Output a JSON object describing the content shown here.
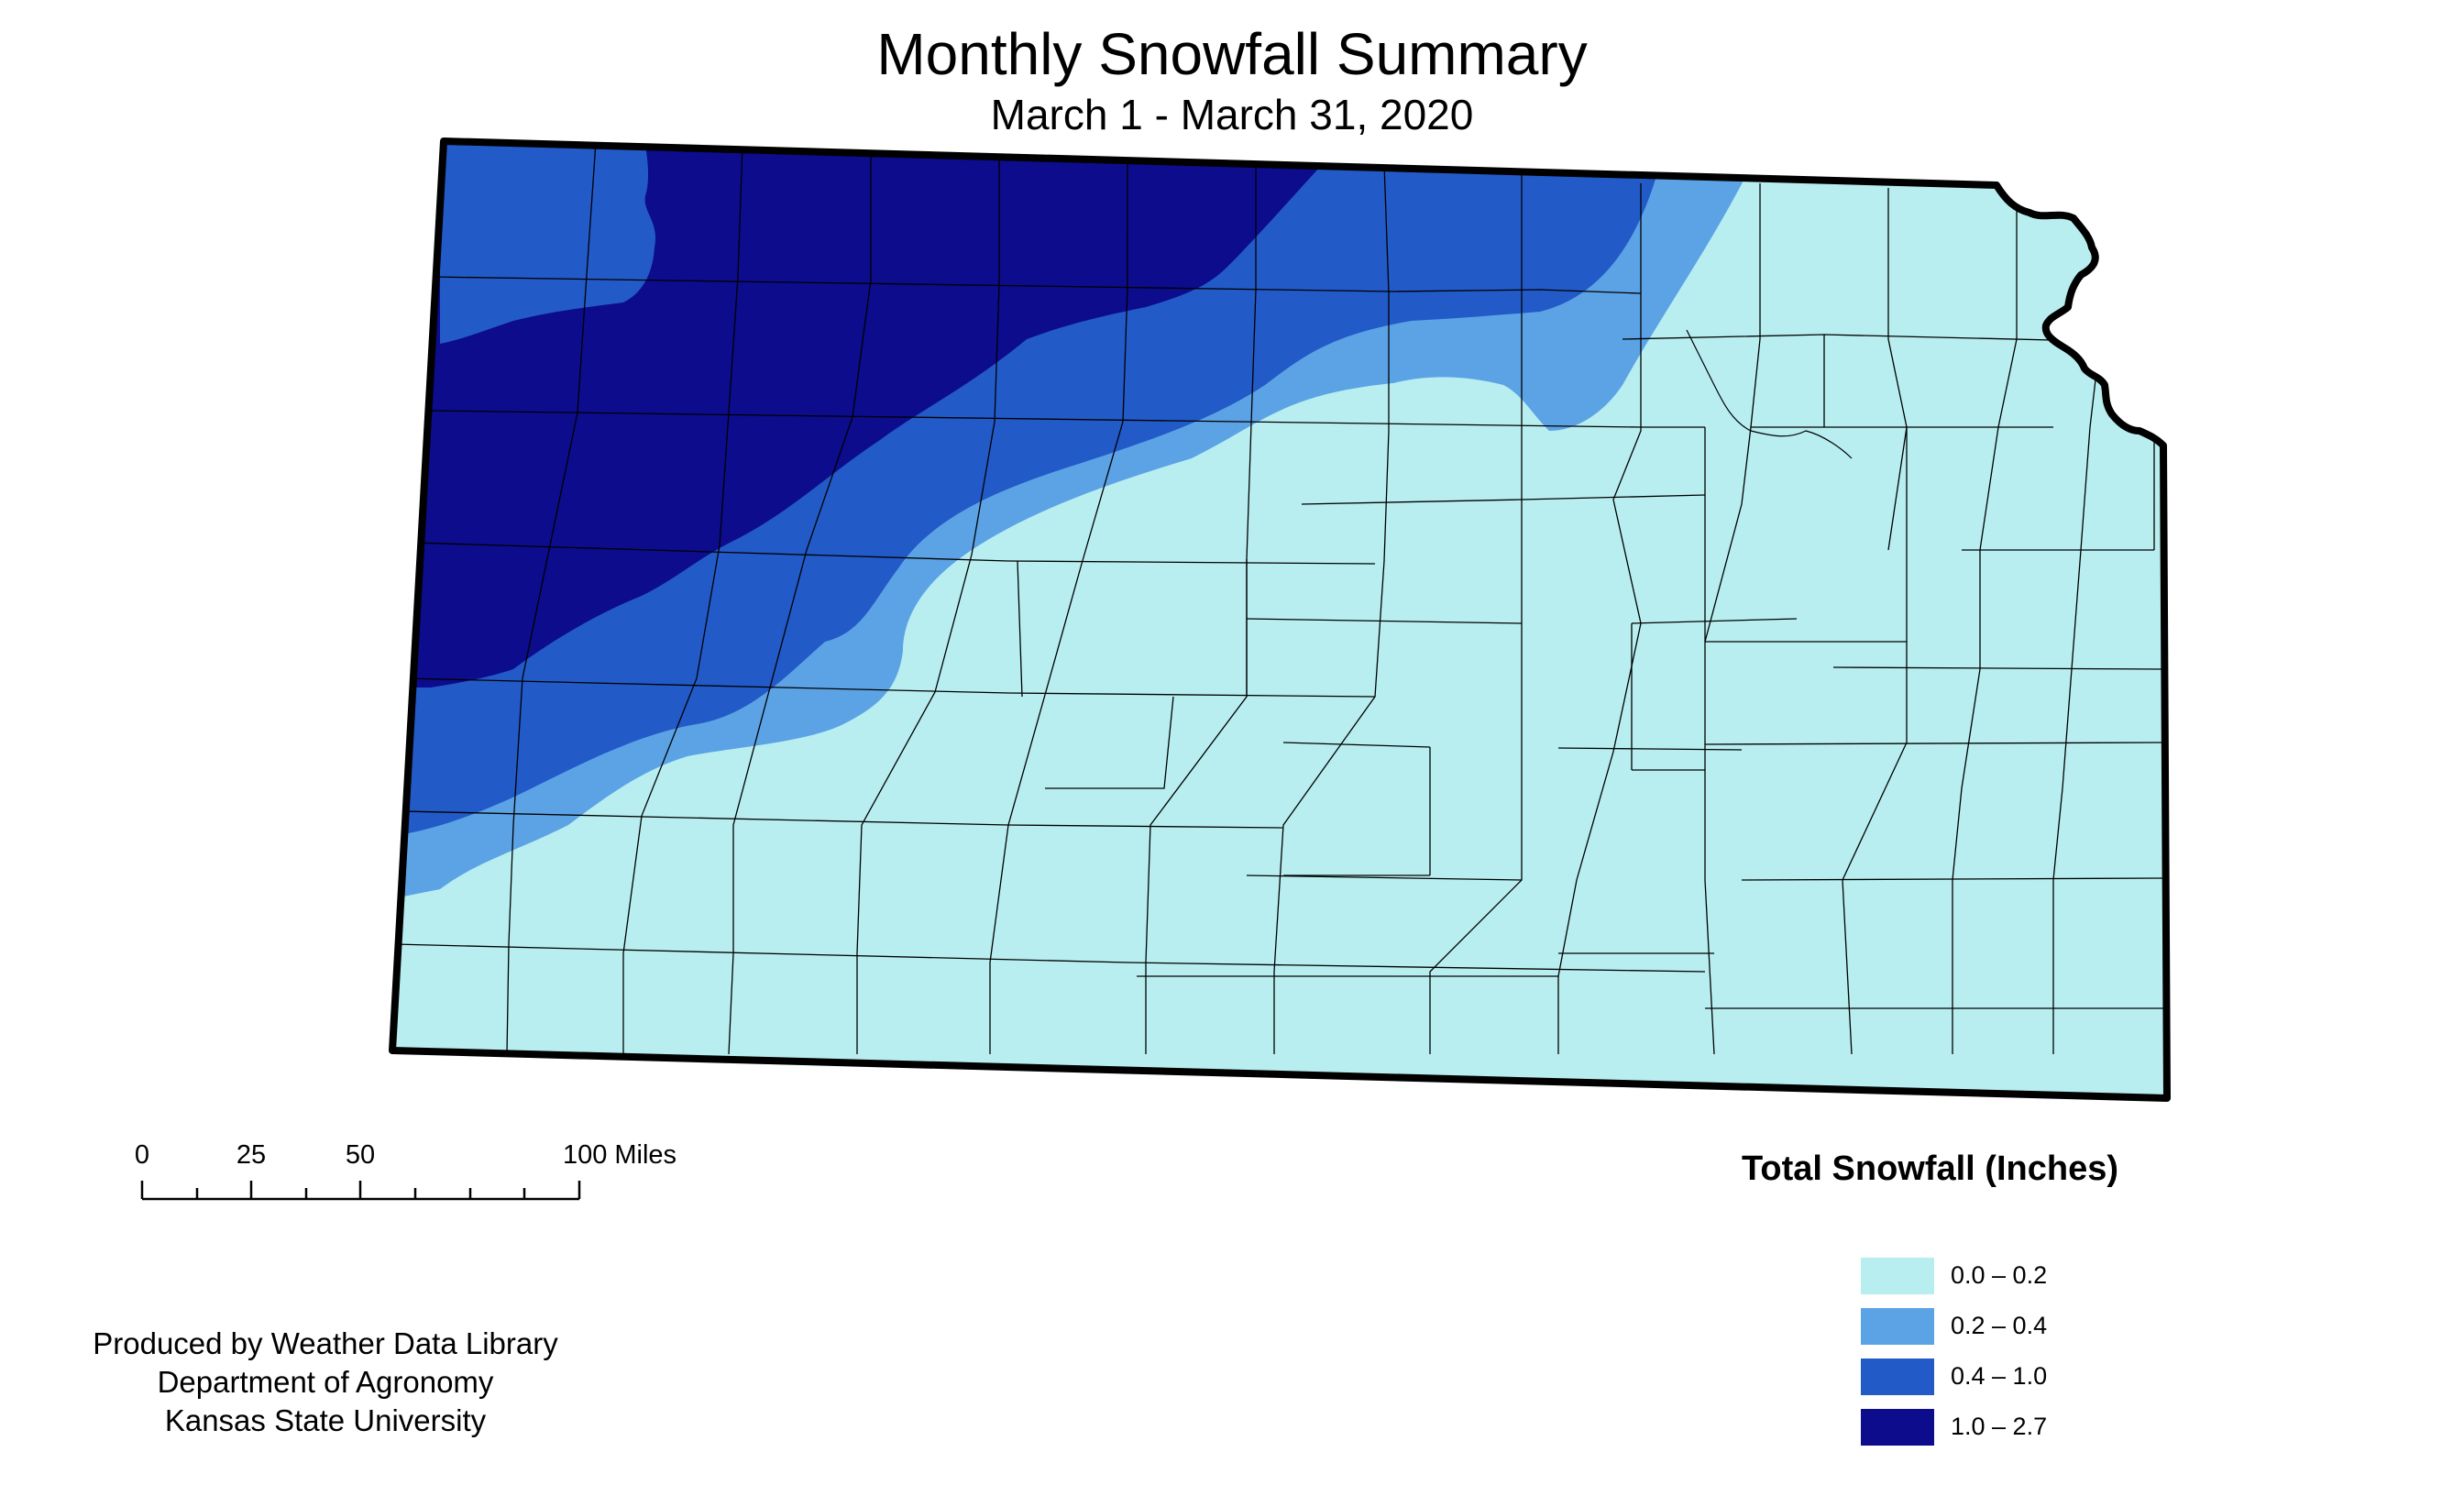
{
  "header": {
    "title": "Monthly Snowfall Summary",
    "subtitle": "March 1 - March 31, 2020"
  },
  "scale_bar": {
    "ticks": [
      "0",
      "25",
      "50",
      "100 Miles"
    ]
  },
  "credits": {
    "line1": "Produced by Weather Data Library",
    "line2": "Department of Agronomy",
    "line3": "Kansas State University"
  },
  "legend": {
    "title": "Total Snowfall (Inches)",
    "items": [
      {
        "label": "0.0 – 0.2",
        "color": "#b8eef0"
      },
      {
        "label": "0.2 – 0.4",
        "color": "#5ca3e6"
      },
      {
        "label": "0.4 – 1.0",
        "color": "#225ac8"
      },
      {
        "label": "1.0 – 2.7",
        "color": "#0c0c8c"
      }
    ]
  },
  "colors": {
    "state_border": "#000000",
    "county_lines": "#000000"
  }
}
